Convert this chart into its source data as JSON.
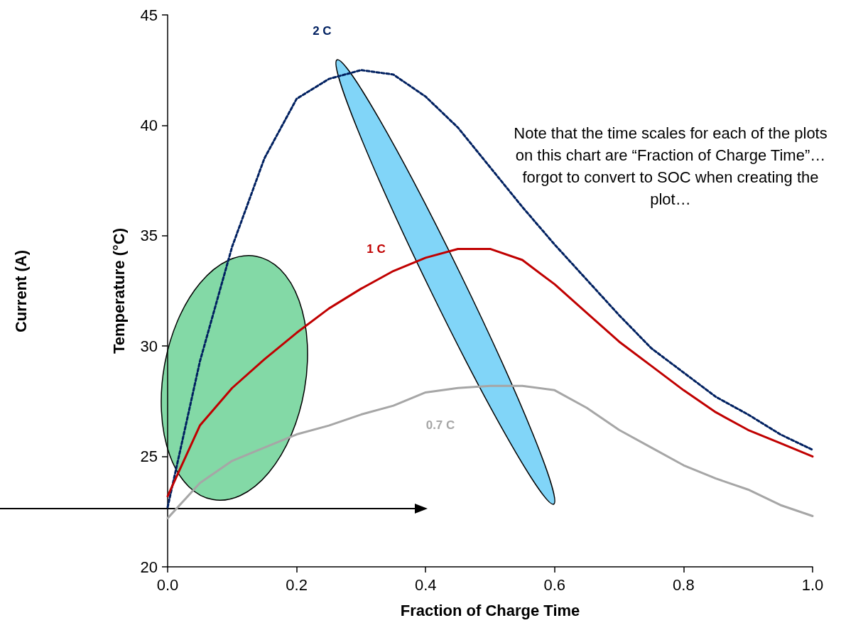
{
  "chart_data": {
    "type": "line",
    "xlabel": "Fraction of Charge Time",
    "ylabel": "Temperature (°C)",
    "annotations": [
      "Current (A)",
      "Note that the time scales for each of the plots on this chart are “Fraction of Charge Time”… forgot to convert to SOC when creating the plot…"
    ],
    "xlim": [
      0,
      1
    ],
    "xticks": [
      {
        "value": 0,
        "label": "0.0"
      },
      0.2,
      0.4,
      0.6,
      0.8,
      {
        "value": 1,
        "label": "1.0"
      }
    ],
    "ylim": [
      20,
      45
    ],
    "yticks": [
      20,
      25,
      30,
      35,
      40,
      45
    ],
    "grid": false,
    "legend": false,
    "marker": "none",
    "x": [
      0,
      0.05,
      0.1,
      0.15,
      0.2,
      0.25,
      0.3,
      0.35,
      0.4,
      0.45,
      0.5,
      0.55,
      0.6,
      0.65,
      0.7,
      0.75,
      0.8,
      0.85,
      0.9,
      0.95,
      1.0
    ],
    "series": [
      {
        "name": "2 C",
        "color": "#002060",
        "line_style": "dashed",
        "values": [
          22.7,
          29.3,
          34.5,
          38.5,
          41.2,
          42.1,
          42.5,
          42.3,
          41.3,
          39.9,
          38.1,
          36.3,
          34.6,
          33.0,
          31.4,
          29.9,
          28.8,
          27.7,
          26.9,
          26.0,
          25.3
        ]
      },
      {
        "name": "1 C",
        "color": "#c00000",
        "line_style": "solid",
        "values": [
          23.2,
          26.4,
          28.1,
          29.4,
          30.6,
          31.7,
          32.6,
          33.4,
          34.0,
          34.4,
          34.4,
          33.9,
          32.8,
          31.5,
          30.2,
          29.1,
          28.0,
          27.0,
          26.2,
          25.6,
          25.0
        ]
      },
      {
        "name": "0.7 C",
        "color": "#a6a6a6",
        "line_style": "solid",
        "values": [
          22.2,
          23.8,
          24.8,
          25.4,
          26.0,
          26.4,
          26.9,
          27.3,
          27.9,
          28.1,
          28.2,
          28.2,
          28.0,
          27.2,
          26.2,
          25.4,
          24.6,
          24.0,
          23.5,
          22.8,
          22.3
        ]
      }
    ]
  }
}
